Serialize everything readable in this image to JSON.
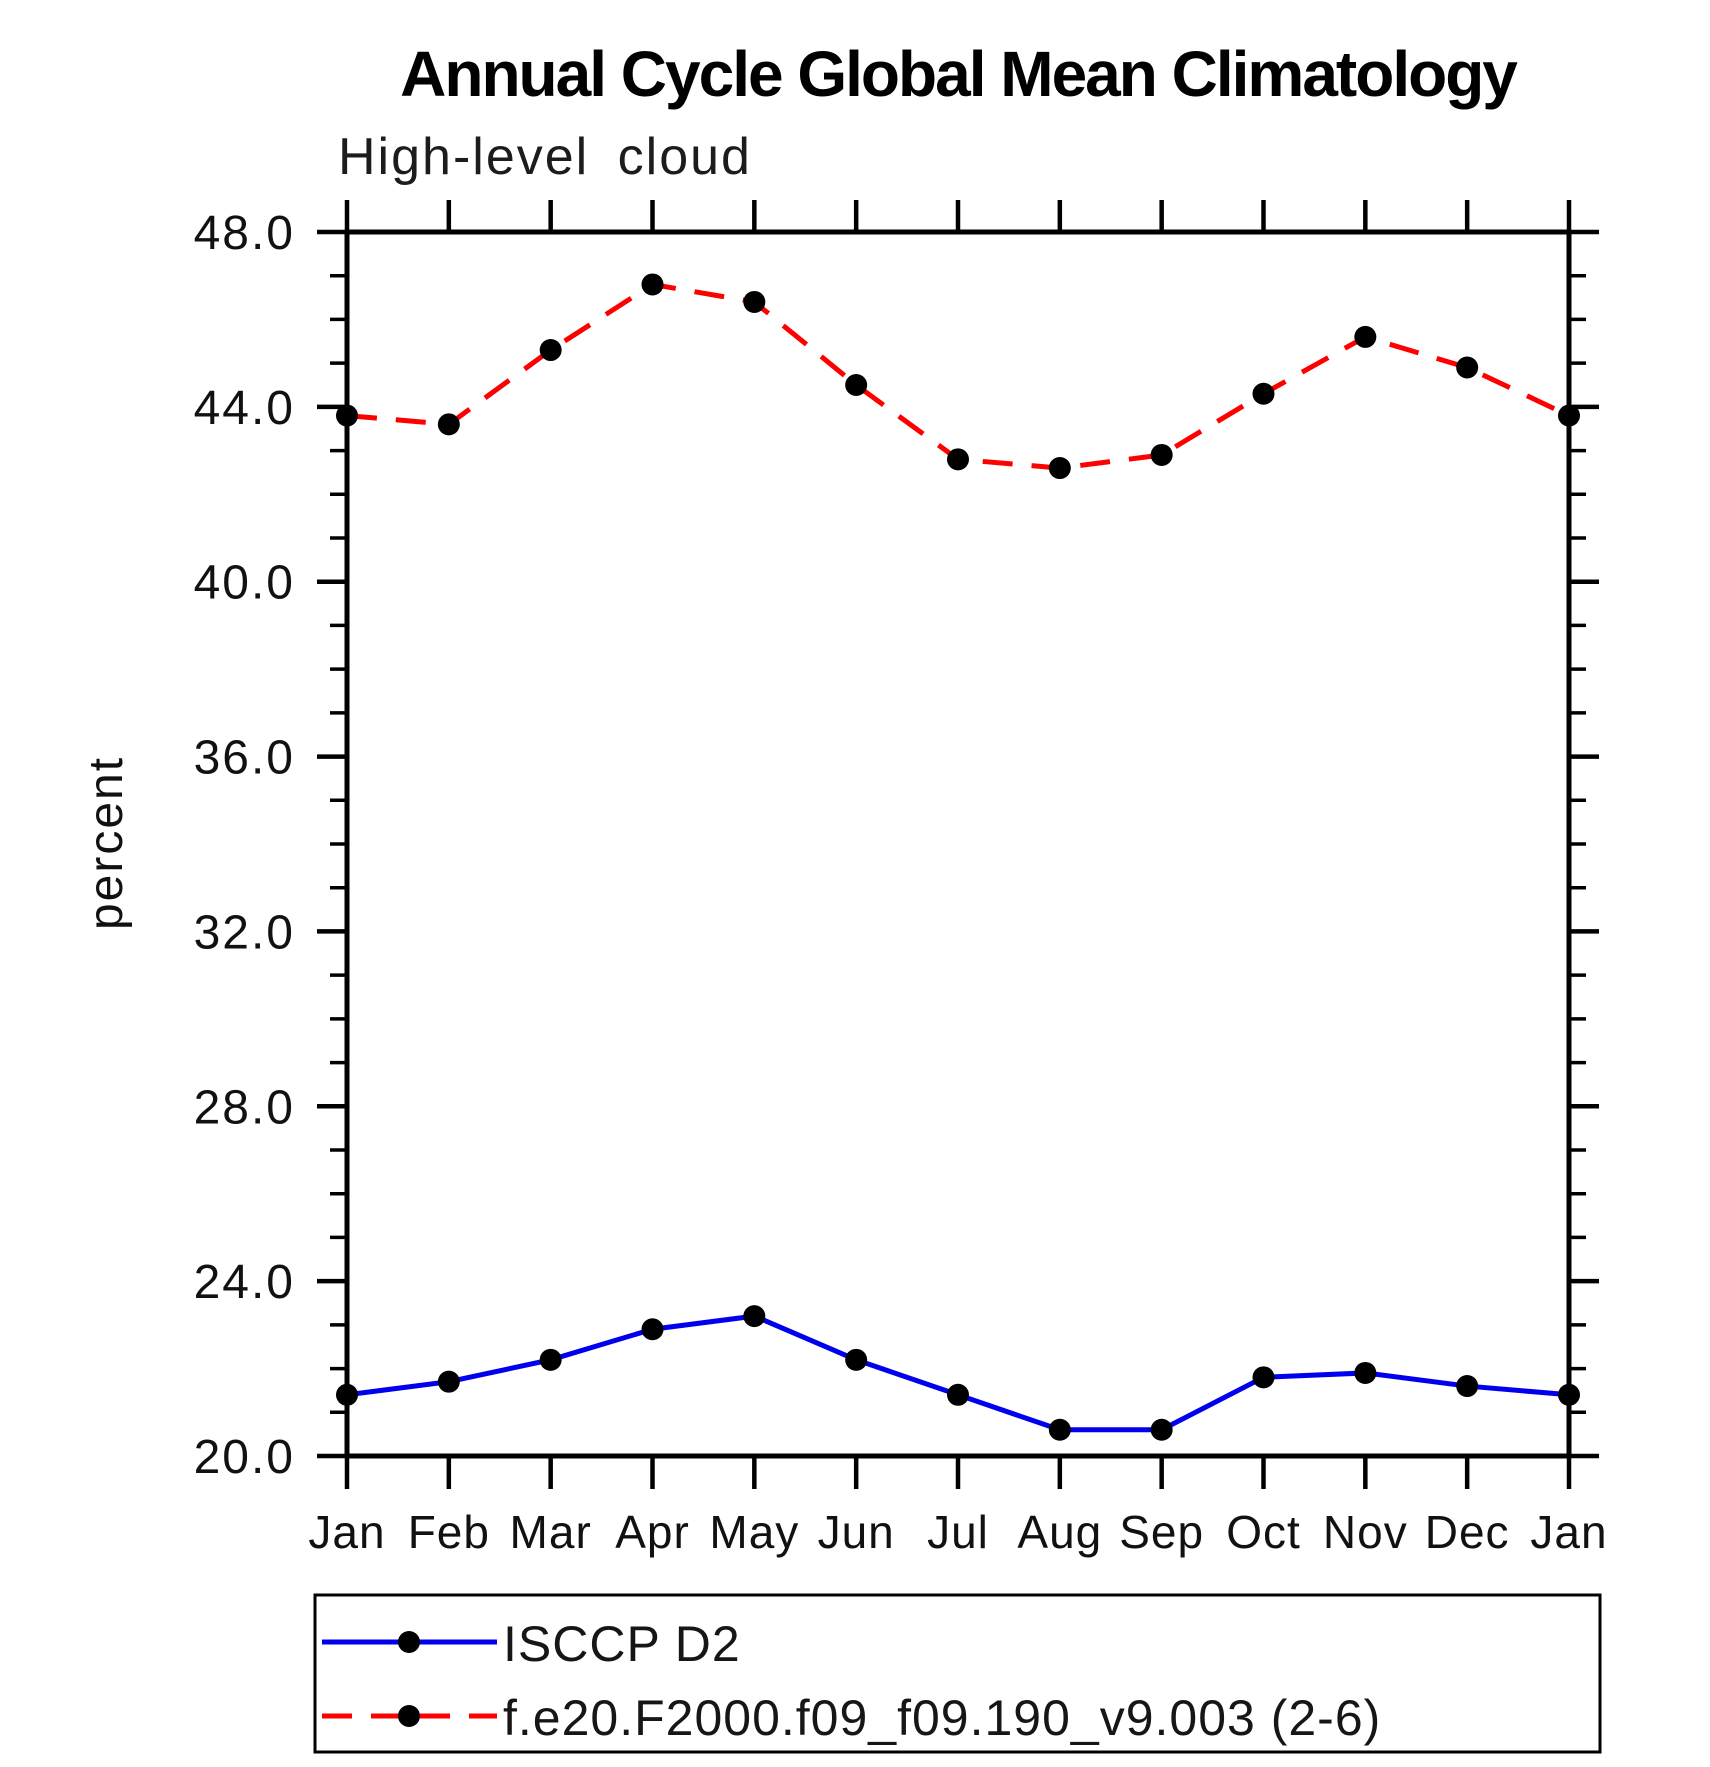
{
  "title": "Annual Cycle Global Mean Climatology",
  "subtitle": "High-level cloud",
  "ylabel": "percent",
  "chart_data": {
    "type": "line",
    "categories": [
      "Jan",
      "Feb",
      "Mar",
      "Apr",
      "May",
      "Jun",
      "Jul",
      "Aug",
      "Sep",
      "Oct",
      "Nov",
      "Dec",
      "Jan"
    ],
    "series": [
      {
        "name": "ISCCP D2",
        "color": "#0000ee",
        "line_style": "solid",
        "marker": "filled-circle",
        "marker_color": "#000000",
        "values": [
          21.4,
          21.7,
          22.2,
          22.9,
          23.2,
          22.2,
          21.4,
          20.6,
          20.6,
          21.8,
          21.9,
          21.6,
          21.4
        ]
      },
      {
        "name": "f.e20.F2000.f09_f09.190_v9.003 (2-6)",
        "color": "#ff0000",
        "line_style": "dashed",
        "marker": "filled-circle",
        "marker_color": "#000000",
        "values": [
          43.8,
          43.6,
          45.3,
          46.8,
          46.4,
          44.5,
          42.8,
          42.6,
          42.9,
          44.3,
          45.6,
          44.9,
          43.8
        ]
      }
    ],
    "xlabel": "",
    "ylabel": "percent",
    "ylim": [
      20.0,
      48.0
    ],
    "y_major_step": 4.0,
    "y_minor_step": 1.0,
    "ytick_labels": [
      "48.0",
      "44.0",
      "40.0",
      "36.0",
      "32.0",
      "28.0",
      "24.0",
      "20.0"
    ],
    "grid": false,
    "frame_color": "#000000",
    "legend_position": "bottom-left-box"
  }
}
